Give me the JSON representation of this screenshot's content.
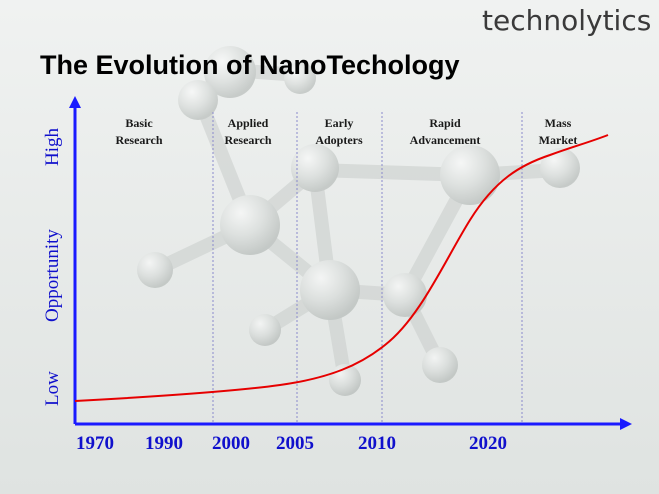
{
  "brand": {
    "name": "technolytics"
  },
  "title": "The Evolution of NanoTechology",
  "y_axis": {
    "low": "Low",
    "mid": "Opportunity",
    "high": "High"
  },
  "x_axis": {
    "ticks": [
      "1970",
      "1990",
      "2000",
      "2005",
      "2010",
      "2020"
    ]
  },
  "phases": [
    {
      "line1": "Basic",
      "line2": "Research"
    },
    {
      "line1": "Applied",
      "line2": "Research"
    },
    {
      "line1": "Early",
      "line2": "Adopters"
    },
    {
      "line1": "Rapid",
      "line2": "Advancement"
    },
    {
      "line1": "Mass",
      "line2": "Market"
    }
  ],
  "colors": {
    "axis": "#1a1aff",
    "curve": "#e60000",
    "divider": "#8a8acc",
    "text_blue": "#1010cc",
    "background": "#e6e9e8"
  },
  "background_image": "molecule-ball-and-stick"
}
